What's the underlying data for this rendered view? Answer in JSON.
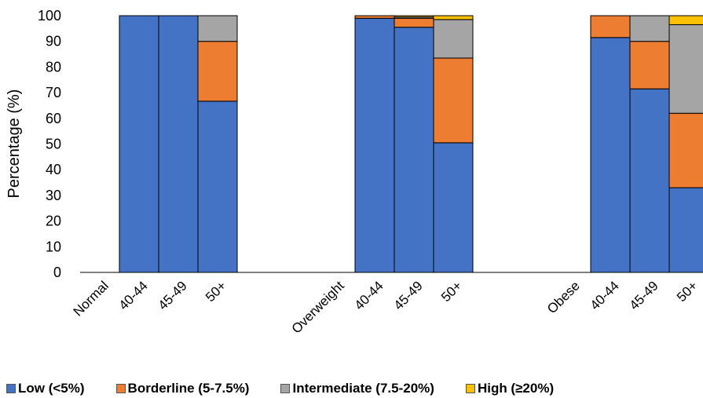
{
  "chart_data": {
    "type": "bar",
    "stacked": true,
    "ylabel": "Percentage (%)",
    "xlabel": "",
    "ylim": [
      0,
      100
    ],
    "yticks": [
      0,
      10,
      20,
      30,
      40,
      50,
      60,
      70,
      80,
      90,
      100
    ],
    "groups": [
      {
        "label": "Normal",
        "bars": [
          {
            "label": "40-44",
            "values": [
              100,
              0,
              0,
              0
            ]
          },
          {
            "label": "45-49",
            "values": [
              100,
              0,
              0,
              0
            ]
          },
          {
            "label": "50+",
            "values": [
              66.7,
              23.3,
              10,
              0
            ]
          }
        ]
      },
      {
        "label": "Overweight",
        "bars": [
          {
            "label": "40-44",
            "values": [
              99,
              1,
              0,
              0
            ]
          },
          {
            "label": "45-49",
            "values": [
              95.5,
              3.5,
              0.5,
              0.5
            ]
          },
          {
            "label": "50+",
            "values": [
              50.5,
              33,
              15,
              1.5
            ]
          }
        ]
      },
      {
        "label": "Obese",
        "bars": [
          {
            "label": "40-44",
            "values": [
              91.5,
              8.5,
              0,
              0
            ]
          },
          {
            "label": "45-49",
            "values": [
              71.5,
              18.5,
              10,
              0
            ]
          },
          {
            "label": "50+",
            "values": [
              33,
              29,
              34.5,
              3.5
            ]
          }
        ]
      }
    ],
    "series": [
      {
        "name": "Low (<5%)",
        "color": "#4472C4"
      },
      {
        "name": "Borderline (5-7.5%)",
        "color": "#ED7D31"
      },
      {
        "name": "Intermediate (7.5-20%)",
        "color": "#A5A5A5"
      },
      {
        "name": "High (≥20%)",
        "color": "#FFC000"
      }
    ],
    "legend_position": "bottom",
    "grid": false
  }
}
